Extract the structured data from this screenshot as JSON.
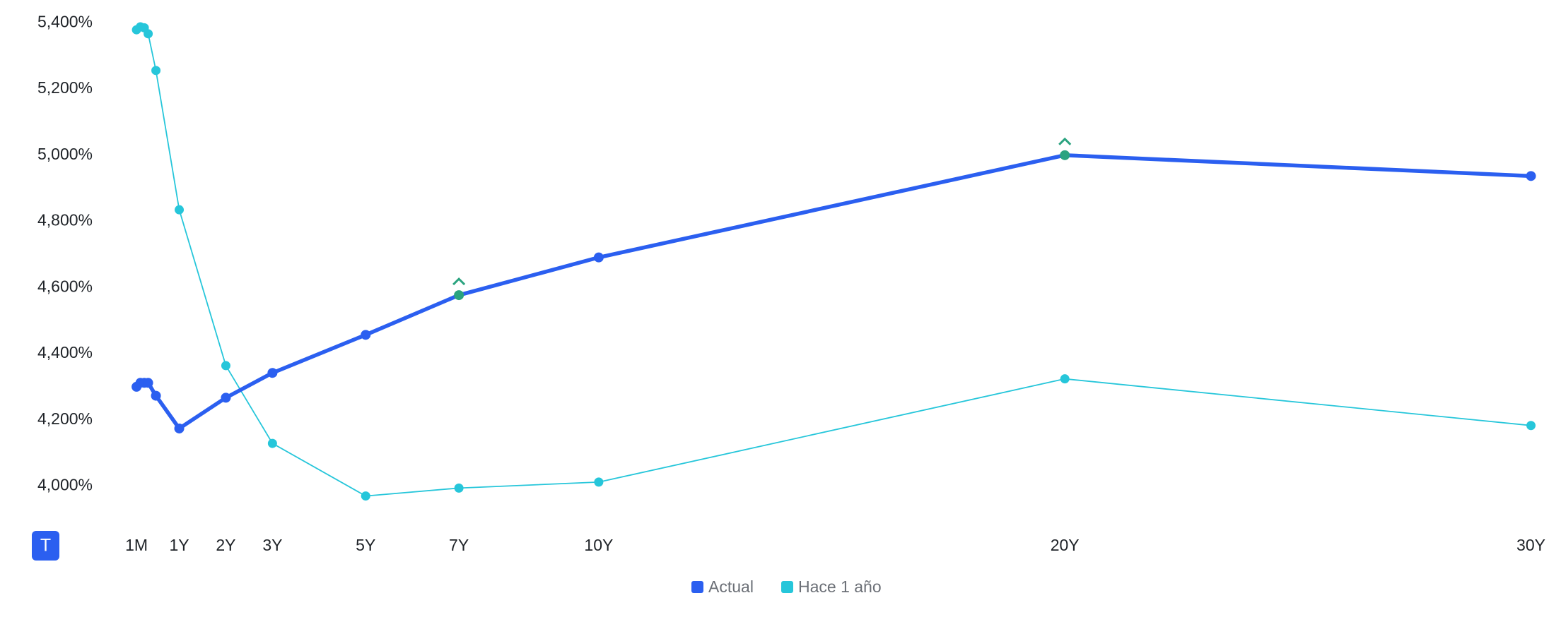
{
  "button": {
    "label": "T"
  },
  "chart_data": {
    "type": "line",
    "x": [
      0.0833,
      0.1667,
      0.25,
      0.3333,
      0.5,
      1,
      2,
      3,
      5,
      7,
      10,
      20,
      30
    ],
    "series": [
      {
        "name": "Actual",
        "color": "#2b5ff0",
        "values": [
          4300,
          4312,
          4312,
          4312,
          4273,
          4174,
          4267,
          4342,
          4457,
          4577,
          4691,
          5000,
          4937
        ]
      },
      {
        "name": "Hace 1 año",
        "color": "#26c6da",
        "values": [
          5379,
          5388,
          5385,
          5367,
          5256,
          4835,
          4364,
          4129,
          3970,
          3994,
          4012,
          4324,
          4183
        ]
      }
    ],
    "markers": {
      "color": "#2aa37f",
      "x": [
        7,
        20
      ]
    },
    "xlim": [
      0,
      30
    ],
    "xticks": [
      {
        "value": 0.0833,
        "label": "1M"
      },
      {
        "value": 1,
        "label": "1Y"
      },
      {
        "value": 2,
        "label": "2Y"
      },
      {
        "value": 3,
        "label": "3Y"
      },
      {
        "value": 5,
        "label": "5Y"
      },
      {
        "value": 7,
        "label": "7Y"
      },
      {
        "value": 10,
        "label": "10Y"
      },
      {
        "value": 20,
        "label": "20Y"
      },
      {
        "value": 30,
        "label": "30Y"
      }
    ],
    "ylim": [
      3900,
      5440
    ],
    "yticks": [
      {
        "value": 4000,
        "label": "4,000%"
      },
      {
        "value": 4200,
        "label": "4,200%"
      },
      {
        "value": 4400,
        "label": "4,400%"
      },
      {
        "value": 4600,
        "label": "4,600%"
      },
      {
        "value": 4800,
        "label": "4,800%"
      },
      {
        "value": 5000,
        "label": "5,000%"
      },
      {
        "value": 5200,
        "label": "5,200%"
      },
      {
        "value": 5400,
        "label": "5,400%"
      }
    ],
    "grid": false,
    "legend": "bottom"
  }
}
